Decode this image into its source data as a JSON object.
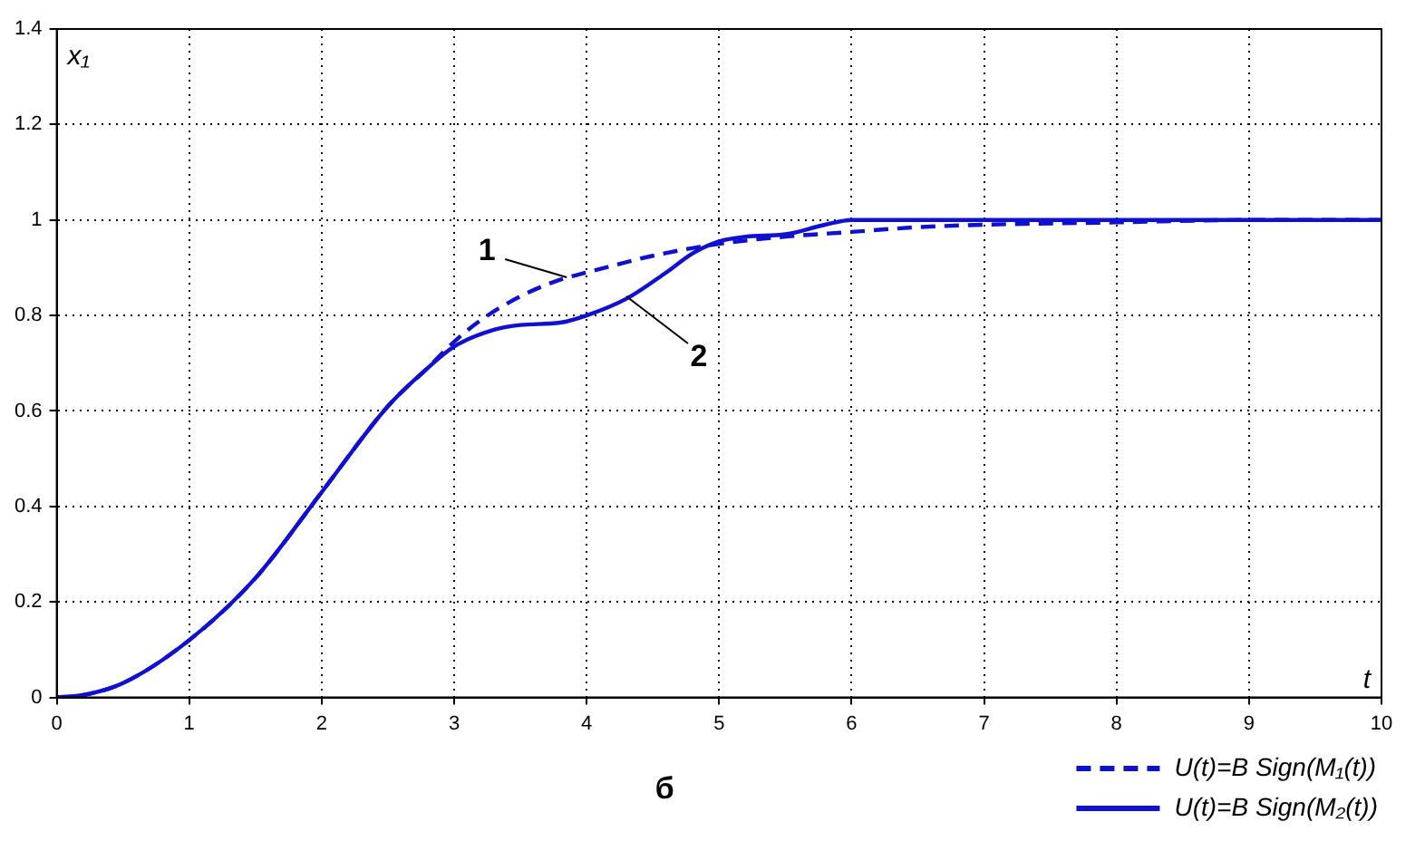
{
  "chart_data": {
    "type": "line",
    "xlabel": "t",
    "ylabel": "x₁",
    "xlim": [
      0,
      10
    ],
    "xticks": [
      0,
      1,
      2,
      3,
      4,
      5,
      6,
      7,
      8,
      9,
      10
    ],
    "ylim": [
      0,
      1.4
    ],
    "yticks": [
      0,
      0.2,
      0.4,
      0.6,
      0.8,
      1,
      1.2,
      1.4
    ],
    "grid": true,
    "legend": "bottom right",
    "marker": "none",
    "series": [
      {
        "name": "U(t)=B Sign(M₁(t))",
        "color": "#1010d0",
        "line_style": "dashed",
        "x": [
          0,
          0.2,
          0.5,
          1,
          1.5,
          2,
          2.5,
          2.8,
          3,
          3.2,
          3.5,
          3.8,
          4,
          4.5,
          5,
          5.5,
          6,
          6.5,
          7,
          8,
          9,
          10
        ],
        "values": [
          0,
          0.005,
          0.03,
          0.12,
          0.25,
          0.43,
          0.61,
          0.69,
          0.745,
          0.79,
          0.84,
          0.875,
          0.89,
          0.925,
          0.95,
          0.965,
          0.975,
          0.985,
          0.99,
          0.995,
          1,
          1
        ]
      },
      {
        "name": "U(t)=B Sign(M₂(t))",
        "color": "#1010d0",
        "line_style": "solid",
        "x": [
          0,
          0.2,
          0.5,
          1,
          1.5,
          2,
          2.5,
          2.8,
          3,
          3.3,
          3.5,
          3.8,
          4,
          4.3,
          4.6,
          4.8,
          5,
          5.2,
          5.5,
          5.8,
          6,
          6.2,
          8,
          10
        ],
        "values": [
          0,
          0.005,
          0.03,
          0.12,
          0.25,
          0.43,
          0.61,
          0.69,
          0.735,
          0.77,
          0.78,
          0.785,
          0.8,
          0.835,
          0.89,
          0.93,
          0.955,
          0.965,
          0.97,
          0.99,
          1,
          1,
          1,
          1
        ]
      }
    ],
    "annotations": [
      {
        "text": "1",
        "x": 3.85,
        "y": 0.88
      },
      {
        "text": "2",
        "x": 4.3,
        "y": 0.84
      },
      "б"
    ]
  }
}
